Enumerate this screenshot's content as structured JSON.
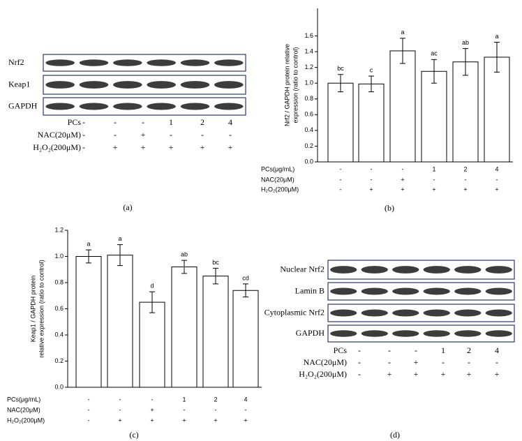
{
  "panels": [
    "(a)",
    "(b)",
    "(c)",
    "(d)"
  ],
  "blots": [
    {
      "rows": [
        "Nrf2",
        "Keap1",
        "GAPDH"
      ],
      "treatments": [
        {
          "label": "PCs",
          "values": [
            "-",
            "-",
            "-",
            "1",
            "2",
            "4"
          ]
        },
        {
          "label": "NAC(20μM)",
          "values": [
            "-",
            "-",
            "+",
            "-",
            "-",
            "-"
          ]
        },
        {
          "label": "H₂O₂(200μM)",
          "values": [
            "-",
            "+",
            "+",
            "+",
            "+",
            "+"
          ]
        }
      ]
    },
    {
      "rows": [
        "Nuclear Nrf2",
        "Lamin B",
        "Cytoplasmic Nrf2",
        "GAPDH"
      ],
      "treatments": [
        {
          "label": "PCs",
          "values": [
            "-",
            "-",
            "-",
            "1",
            "2",
            "4"
          ]
        },
        {
          "label": "NAC(20μM)",
          "values": [
            "-",
            "-",
            "+",
            "-",
            "-",
            "-"
          ]
        },
        {
          "label": "H₂O₂(200μM)",
          "values": [
            "-",
            "+",
            "+",
            "+",
            "+",
            "+"
          ]
        }
      ]
    }
  ],
  "chart_data": [
    {
      "type": "bar",
      "ylabel": [
        "Nrf2 / GAPDH protein relative",
        "expression (ratio to control)"
      ],
      "values": [
        1.0,
        0.99,
        1.41,
        1.15,
        1.27,
        1.33
      ],
      "errors": [
        0.11,
        0.1,
        0.16,
        0.15,
        0.17,
        0.19
      ],
      "letters": [
        "bc",
        "c",
        "a",
        "ac",
        "ab",
        "a"
      ],
      "color": "#ffffff",
      "ylim": [
        0,
        1.95
      ],
      "yticks": [
        {
          "value": 0,
          "label": "0.0"
        },
        0.2,
        0.4,
        0.6,
        0.8,
        {
          "value": 1,
          "label": "1.0"
        },
        1.2,
        1.4,
        1.6
      ],
      "treatments": [
        {
          "label": "PCs(μg/mL)",
          "values": [
            "-",
            "-",
            "-",
            "1",
            "2",
            "4"
          ]
        },
        {
          "label": "NAC(20μM)",
          "values": [
            "-",
            "-",
            "+",
            "-",
            "-",
            "-"
          ]
        },
        {
          "label": "H₂O₂(200μM)",
          "values": [
            "-",
            "+",
            "+",
            "+",
            "+",
            "+"
          ]
        }
      ]
    },
    {
      "type": "bar",
      "ylabel": [
        "Keap1 / GAPDH protein",
        "relative expression (ratio to control)"
      ],
      "values": [
        1.0,
        1.01,
        0.65,
        0.92,
        0.85,
        0.74
      ],
      "errors": [
        0.05,
        0.08,
        0.08,
        0.05,
        0.06,
        0.05
      ],
      "letters": [
        "a",
        "a",
        "d",
        "ab",
        "bc",
        "cd"
      ],
      "color": "#ffffff",
      "ylim": [
        0,
        1.2
      ],
      "yticks": [
        {
          "value": 0,
          "label": "0.0"
        },
        0.2,
        0.4,
        0.6,
        0.8,
        {
          "value": 1,
          "label": "1.0"
        },
        1.2
      ],
      "treatments": [
        {
          "label": "PCs(μg/mL)",
          "values": [
            "-",
            "-",
            "-",
            "1",
            "2",
            "4"
          ]
        },
        {
          "label": "NAC(20μM)",
          "values": [
            "-",
            "-",
            "+",
            "-",
            "-",
            "-"
          ]
        },
        {
          "label": "H₂O₂(200μM)",
          "values": [
            "-",
            "+",
            "+",
            "+",
            "+",
            "+"
          ]
        }
      ]
    }
  ]
}
